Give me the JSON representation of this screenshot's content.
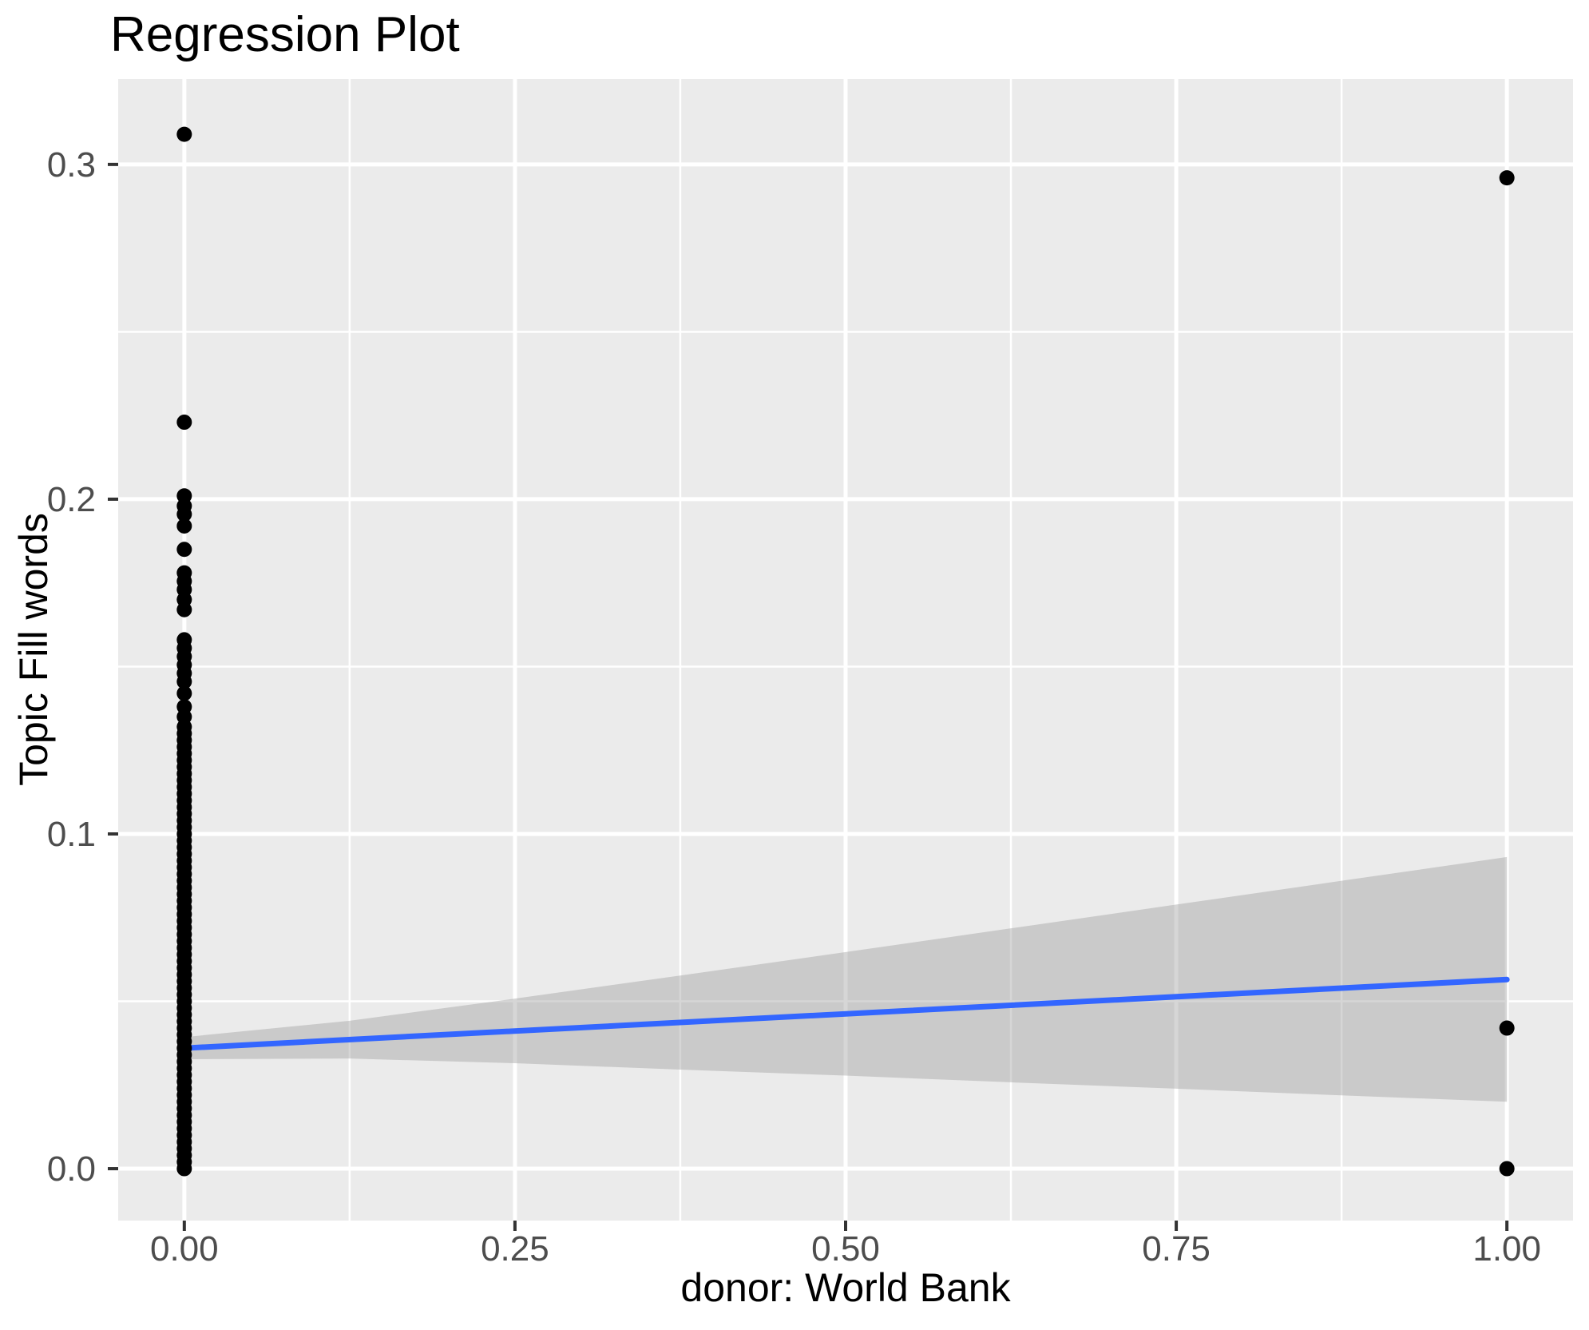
{
  "chart_data": {
    "type": "scatter",
    "title": "Regression Plot",
    "xlabel": "donor: World Bank",
    "ylabel": "Topic Fill words",
    "xlim": [
      -0.05,
      1.05
    ],
    "ylim": [
      -0.0155,
      0.3255
    ],
    "grid": true,
    "legend_position": "none",
    "x_ticks": {
      "values": [
        0,
        0.25,
        0.5,
        0.75,
        1
      ],
      "labels": [
        "0.00",
        "0.25",
        "0.50",
        "0.75",
        "1.00"
      ]
    },
    "y_ticks": {
      "values": [
        0,
        0.1,
        0.2,
        0.3
      ],
      "labels": [
        "0.0",
        "0.1",
        "0.2",
        "0.3"
      ]
    },
    "x_minor": [
      0.125,
      0.375,
      0.625,
      0.875
    ],
    "y_minor": [
      0.05,
      0.15,
      0.25
    ],
    "colors": {
      "panel_bg": "#EBEBEB",
      "grid": "#FFFFFF",
      "point": "#000000",
      "line": "#3366FF",
      "band": "#999999",
      "tick_text": "#4D4D4D",
      "tick_mark": "#333333"
    },
    "series": [
      {
        "name": "observations",
        "color": "#000000",
        "point_radius": 9.5,
        "points": [
          [
            0,
            0.309
          ],
          [
            0,
            0.223
          ],
          [
            0,
            0.201
          ],
          [
            0,
            0.198
          ],
          [
            0,
            0.1955
          ],
          [
            0,
            0.192
          ],
          [
            0,
            0.185
          ],
          [
            0,
            0.178
          ],
          [
            0,
            0.1755
          ],
          [
            0,
            0.173
          ],
          [
            0,
            0.17
          ],
          [
            0,
            0.167
          ],
          [
            0,
            0.158
          ],
          [
            0,
            0.1555
          ],
          [
            0,
            0.153
          ],
          [
            0,
            0.1505
          ],
          [
            0,
            0.148
          ],
          [
            0,
            0.1455
          ],
          [
            0,
            0.142
          ],
          [
            0,
            0.138
          ],
          [
            0,
            0.135
          ],
          [
            0,
            0.132
          ],
          [
            0,
            0.13
          ],
          [
            0,
            0.128
          ],
          [
            0,
            0.126
          ],
          [
            0,
            0.124
          ],
          [
            0,
            0.122
          ],
          [
            0,
            0.12
          ],
          [
            0,
            0.118
          ],
          [
            0,
            0.116
          ],
          [
            0,
            0.114
          ],
          [
            0,
            0.112
          ],
          [
            0,
            0.11
          ],
          [
            0,
            0.108
          ],
          [
            0,
            0.106
          ],
          [
            0,
            0.104
          ],
          [
            0,
            0.102
          ],
          [
            0,
            0.1
          ],
          [
            0,
            0.098
          ],
          [
            0,
            0.096
          ],
          [
            0,
            0.094
          ],
          [
            0,
            0.092
          ],
          [
            0,
            0.09
          ],
          [
            0,
            0.088
          ],
          [
            0,
            0.086
          ],
          [
            0,
            0.084
          ],
          [
            0,
            0.082
          ],
          [
            0,
            0.08
          ],
          [
            0,
            0.078
          ],
          [
            0,
            0.076
          ],
          [
            0,
            0.074
          ],
          [
            0,
            0.072
          ],
          [
            0,
            0.07
          ],
          [
            0,
            0.068
          ],
          [
            0,
            0.066
          ],
          [
            0,
            0.064
          ],
          [
            0,
            0.062
          ],
          [
            0,
            0.06
          ],
          [
            0,
            0.058
          ],
          [
            0,
            0.056
          ],
          [
            0,
            0.054
          ],
          [
            0,
            0.052
          ],
          [
            0,
            0.05
          ],
          [
            0,
            0.048
          ],
          [
            0,
            0.046
          ],
          [
            0,
            0.044
          ],
          [
            0,
            0.042
          ],
          [
            0,
            0.04
          ],
          [
            0,
            0.038
          ],
          [
            0,
            0.036
          ],
          [
            0,
            0.034
          ],
          [
            0,
            0.032
          ],
          [
            0,
            0.03
          ],
          [
            0,
            0.028
          ],
          [
            0,
            0.026
          ],
          [
            0,
            0.024
          ],
          [
            0,
            0.022
          ],
          [
            0,
            0.02
          ],
          [
            0,
            0.018
          ],
          [
            0,
            0.016
          ],
          [
            0,
            0.014
          ],
          [
            0,
            0.012
          ],
          [
            0,
            0.01
          ],
          [
            0,
            0.008
          ],
          [
            0,
            0.006
          ],
          [
            0,
            0.004
          ],
          [
            0,
            0.002
          ],
          [
            0,
            0.0
          ],
          [
            1,
            0.296
          ],
          [
            1,
            0.042
          ],
          [
            1,
            0.0
          ]
        ]
      }
    ],
    "regression_line": {
      "color": "#3366FF",
      "width": 7,
      "x": [
        0,
        1
      ],
      "y": [
        0.036,
        0.0565
      ]
    },
    "confidence_band": {
      "fill": "#999999",
      "opacity": 0.4,
      "x": [
        0,
        0.125,
        0.25,
        0.375,
        0.5,
        0.625,
        0.75,
        0.875,
        1
      ],
      "lower": [
        0.0327,
        0.0329,
        0.0315,
        0.0296,
        0.0278,
        0.0258,
        0.0239,
        0.0219,
        0.02
      ],
      "upper": [
        0.0393,
        0.0442,
        0.0508,
        0.0577,
        0.0647,
        0.0718,
        0.0789,
        0.086,
        0.0931
      ]
    }
  }
}
